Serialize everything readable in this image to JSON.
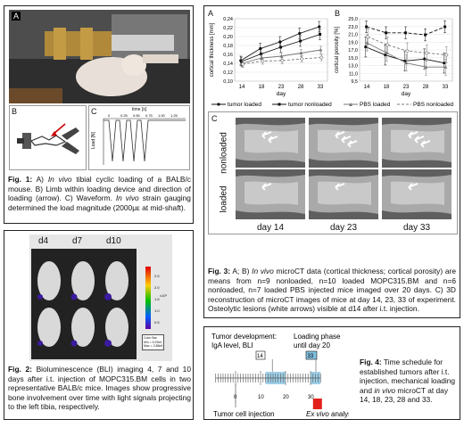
{
  "fig1": {
    "label_a": "A",
    "label_b": "B",
    "label_c": "C",
    "waveform_time_label": "time [s]",
    "waveform_time_ticks": [
      "0",
      "0.25",
      "0.50",
      "0.75",
      "1.00",
      "1.25"
    ],
    "waveform_load_label": "Load [N]",
    "caption_bold": "Fig. 1:",
    "caption_parts": [
      {
        "t": " A) "
      },
      {
        "t": "In vivo",
        "i": true
      },
      {
        "t": " tibial cyclic loading of a BALB/c mouse. B) Limb within loading device and direction of loading (arrow). C) Waveform. "
      },
      {
        "t": "In vivo",
        "i": true
      },
      {
        "t": " strain gauging determined the load magnitude (2000με at mid-shaft)."
      }
    ]
  },
  "fig2": {
    "days": [
      "d4",
      "d7",
      "d10"
    ],
    "colorbar_ticks": [
      "2.5",
      "2.0",
      "1.5",
      "1.0",
      "0.5"
    ],
    "colorbar_unit": "x10⁶",
    "colorbar_info": [
      "Color Bar",
      "Min = 5.29e4",
      "Max = 2.88e6"
    ],
    "caption_bold": "Fig. 2:",
    "caption": " Bioluminescence (BLI) imaging 4, 7 and 10 days after i.t. injection of MOPC315.BM cells in two representative BALB/c mice. Images show progressive bone involvement over time with light signals projecting to the left tibia, respectively."
  },
  "fig3": {
    "label_a": "A",
    "label_b": "B",
    "label_c": "C",
    "chart_data": [
      {
        "type": "line",
        "ylabel": "cortical thickness [mm]",
        "xlabel": "day",
        "categories": [
          "14",
          "18",
          "23",
          "28",
          "33"
        ],
        "ylim": [
          0.1,
          0.24
        ],
        "yticks": [
          "0,24",
          "0,22",
          "0,20",
          "0,18",
          "0,16",
          "0,14",
          "0,12",
          "0,10"
        ],
        "series": [
          {
            "name": "tumor loaded",
            "values": [
              0.146,
              0.173,
              0.188,
              0.207,
              0.222
            ],
            "err": [
              0.01,
              0.012,
              0.012,
              0.012,
              0.012
            ],
            "color": "#111111",
            "dash": "",
            "marker": "circle"
          },
          {
            "name": "tumor nonloaded",
            "values": [
              0.144,
              0.161,
              0.176,
              0.19,
              0.205
            ],
            "err": [
              0.01,
              0.012,
              0.012,
              0.012,
              0.012
            ],
            "color": "#111111",
            "dash": "",
            "marker": "square"
          },
          {
            "name": "PBS loaded",
            "values": [
              0.14,
              0.152,
              0.156,
              0.163,
              0.17
            ],
            "err": [
              0.008,
              0.008,
              0.008,
              0.008,
              0.008
            ],
            "color": "#777777",
            "dash": "",
            "marker": "triangle"
          },
          {
            "name": "PBS nonloaded",
            "values": [
              0.138,
              0.145,
              0.146,
              0.15,
              0.153
            ],
            "err": [
              0.007,
              0.007,
              0.007,
              0.007,
              0.007
            ],
            "color": "#777777",
            "dash": "3,2",
            "marker": "diamond"
          }
        ]
      },
      {
        "type": "line",
        "ylabel": "cortical porosity [%]",
        "xlabel": "day",
        "categories": [
          "14",
          "18",
          "23",
          "28",
          "33"
        ],
        "ylim": [
          9.5,
          25.0
        ],
        "yticks": [
          "25,0",
          "23,0",
          "21,0",
          "19,0",
          "17,0",
          "15,0",
          "13,0",
          "11,0",
          "9,5"
        ],
        "series": [
          {
            "name": "tumor loaded",
            "values": [
              18.0,
              16.0,
              14.5,
              15.0,
              14.0
            ],
            "err": [
              2.5,
              2.5,
              2.5,
              2.5,
              2.5
            ],
            "color": "#111111",
            "dash": "",
            "marker": "circle"
          },
          {
            "name": "tumor nonloaded",
            "values": [
              23.0,
              21.5,
              21.5,
              21.0,
              23.0
            ],
            "err": [
              1.5,
              1.5,
              1.5,
              1.5,
              1.5
            ],
            "color": "#111111",
            "dash": "4,2",
            "marker": "square"
          },
          {
            "name": "PBS loaded",
            "values": [
              19.0,
              16.5,
              14.0,
              13.0,
              13.0
            ],
            "err": [
              2.0,
              2.0,
              2.0,
              2.0,
              2.0
            ],
            "color": "#777777",
            "dash": "",
            "marker": "triangle"
          },
          {
            "name": "PBS nonloaded",
            "values": [
              20.5,
              18.5,
              17.0,
              16.5,
              16.0
            ],
            "err": [
              2.0,
              2.0,
              2.0,
              2.0,
              2.0
            ],
            "color": "#777777",
            "dash": "3,2",
            "marker": "diamond"
          }
        ]
      }
    ],
    "legend": [
      "tumor loaded",
      "tumor nonloaded",
      "PBS loaded",
      "PBS nonloaded"
    ],
    "row_labels": [
      "nonloaded",
      "loaded"
    ],
    "ct_days": [
      "day 14",
      "day 23",
      "day 33"
    ],
    "caption_bold": "Fig. 3:",
    "caption_parts": [
      {
        "t": " A; B) "
      },
      {
        "t": "In vivo",
        "i": true
      },
      {
        "t": " microCT data (cortical thickness; cortical porosity) are means from n=9 nonloaded, n=10 loaded MOPC315.BM and n=6 nonloaded, n=7 loaded PBS injected mice imaged over 20 days. C) 3D reconstruction of microCT images of mice at day 14, 23, 33 of experiment. Osteolytic lesions (white arrows) visible at d14 after i.t. injection."
      }
    ]
  },
  "fig4": {
    "tumor_dev": "Tumor development:",
    "iga": "IgA level, BLI",
    "loading_phase": "Loading phase",
    "until": "until day 20",
    "box14": "14",
    "box33": "33",
    "axis_ticks": [
      "0",
      "10",
      "20",
      "30"
    ],
    "injection": "Tumor cell injection",
    "analysis_italic": "Ex vivo",
    "analysis_rest": " analysis",
    "caption_bold": "Fig. 4:",
    "caption_parts": [
      {
        "t": " Time schedule for established tumors after i.t. injection, mechanical loading and "
      },
      {
        "t": "in vivo",
        "i": true
      },
      {
        "t": " microCT at day 14, 18, 23, 28 and 33."
      }
    ]
  }
}
